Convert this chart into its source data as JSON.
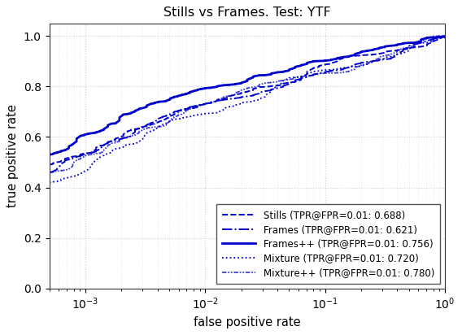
{
  "title": "Stills vs Frames. Test: YTF",
  "xlabel": "false positive rate",
  "ylabel": "true positive rate",
  "xlim_low": 0.0005,
  "xlim_high": 1.0,
  "ylim_low": 0.0,
  "ylim_high": 1.05,
  "color": "#0000cc",
  "curves": [
    {
      "label": "Stills (TPR@FPR=0.01: 0.688)",
      "linestyle": "--",
      "linewidth": 1.4,
      "tpr_at_fpr001": 0.688,
      "tpr_start": 0.49,
      "seed": 10
    },
    {
      "label": "Frames (TPR@FPR=0.01: 0.621)",
      "linestyle": "-.",
      "linewidth": 1.4,
      "tpr_at_fpr001": 0.621,
      "tpr_start": 0.46,
      "seed": 20
    },
    {
      "label": "Frames++ (TPR@FPR=0.01: 0.756)",
      "linestyle": "-",
      "linewidth": 2.0,
      "tpr_at_fpr001": 0.756,
      "tpr_start": 0.53,
      "seed": 30
    },
    {
      "label": "Mixture (TPR@FPR=0.01: 0.720)",
      "linestyle": ":",
      "linewidth": 1.3,
      "tpr_at_fpr001": 0.72,
      "tpr_start": 0.42,
      "seed": 40
    },
    {
      "label": "Mixture++ (TPR@FPR=0.01: 0.780)",
      "linestyle": "-.",
      "linewidth": 1.3,
      "tpr_at_fpr001": 0.78,
      "tpr_start": 0.46,
      "seed": 50
    }
  ],
  "grid_color": "#aaaacc",
  "grid_alpha": 0.6,
  "background": "#ffffff",
  "yticks": [
    0.0,
    0.2,
    0.4,
    0.6,
    0.8,
    1.0
  ]
}
